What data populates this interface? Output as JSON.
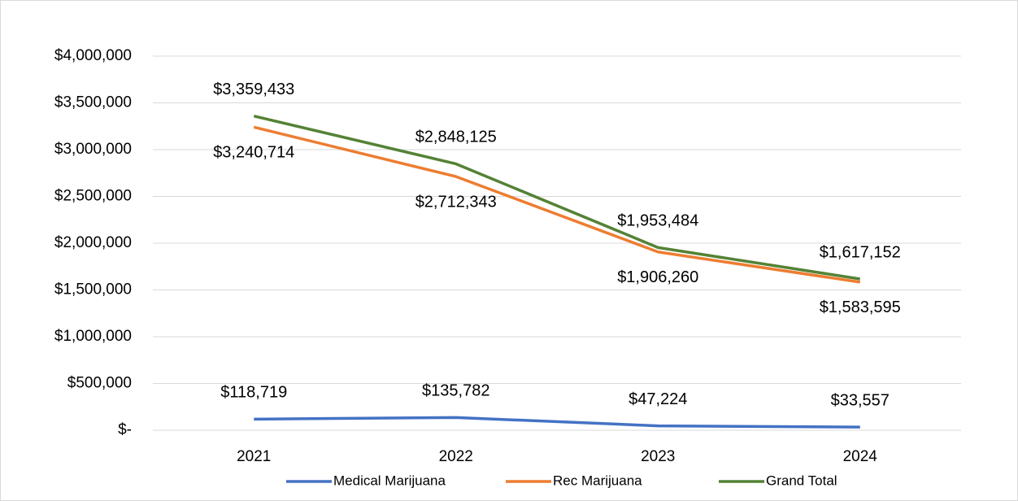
{
  "chart_data": {
    "type": "line",
    "categories": [
      "2021",
      "2022",
      "2023",
      "2024"
    ],
    "series": [
      {
        "name": "Medical Marijuana",
        "color": "#4472c4",
        "values": [
          118719,
          135782,
          47224,
          33557
        ],
        "value_labels": [
          "$118,719",
          "$135,782",
          "$47,224",
          "$33,557"
        ]
      },
      {
        "name": "Rec Marijuana",
        "color": "#ed7d31",
        "values": [
          3240714,
          2712343,
          1906260,
          1583595
        ],
        "value_labels": [
          "$3,240,714",
          "$2,712,343",
          "$1,906,260",
          "$1,583,595"
        ]
      },
      {
        "name": "Grand Total",
        "color": "#548235",
        "values": [
          3359433,
          2848125,
          1953484,
          1617152
        ],
        "value_labels": [
          "$3,359,433",
          "$2,848,125",
          "$1,953,484",
          "$1,617,152"
        ]
      }
    ],
    "ylim": [
      0,
      4000000
    ],
    "yticks": [
      {
        "value": 0,
        "label": "$-"
      },
      {
        "value": 500000,
        "label": "$500,000"
      },
      {
        "value": 1000000,
        "label": "$1,000,000"
      },
      {
        "value": 1500000,
        "label": "$1,500,000"
      },
      {
        "value": 2000000,
        "label": "$2,000,000"
      },
      {
        "value": 2500000,
        "label": "$2,500,000"
      },
      {
        "value": 3000000,
        "label": "$3,000,000"
      },
      {
        "value": 3500000,
        "label": "$3,500,000"
      },
      {
        "value": 4000000,
        "label": "$4,000,000"
      }
    ],
    "grid": true,
    "legend": "bottom"
  }
}
